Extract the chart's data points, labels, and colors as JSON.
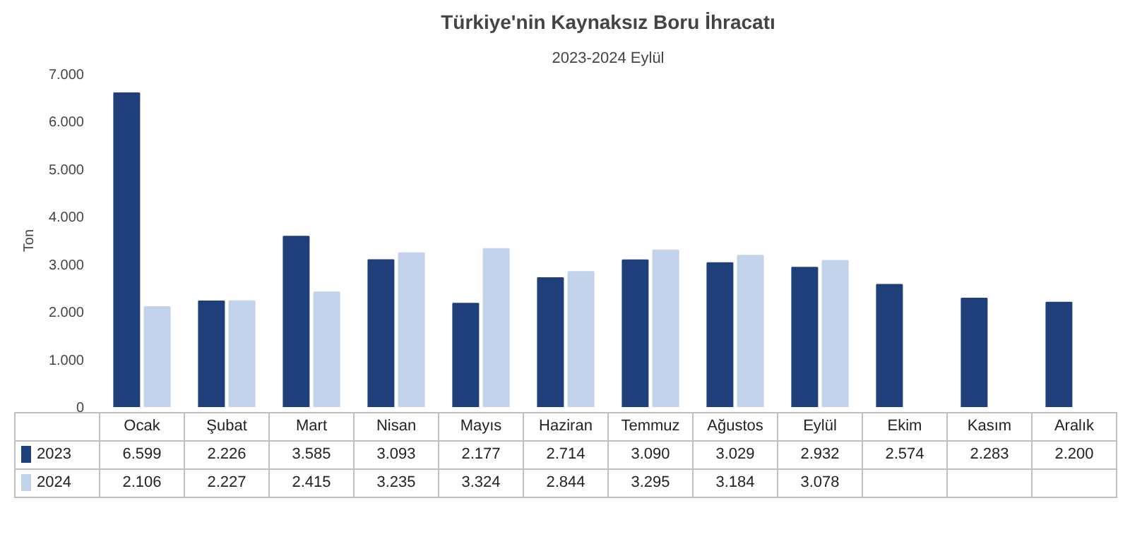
{
  "chart_data": {
    "type": "bar",
    "title": "Türkiye'nin Kaynaksız Boru İhracatı",
    "subtitle": "2023-2024 Eylül",
    "ylabel": "Ton",
    "categories": [
      "Ocak",
      "Şubat",
      "Mart",
      "Nisan",
      "Mayıs",
      "Haziran",
      "Temmuz",
      "Ağustos",
      "Eylül",
      "Ekim",
      "Kasım",
      "Aralık"
    ],
    "series": [
      {
        "name": "2023",
        "color": "#1f3f7a",
        "values": [
          6599,
          2226,
          3585,
          3093,
          2177,
          2714,
          3090,
          3029,
          2932,
          2574,
          2283,
          2200
        ],
        "value_labels": [
          "6.599",
          "2.226",
          "3.585",
          "3.093",
          "2.177",
          "2.714",
          "3.090",
          "3.029",
          "2.932",
          "2.574",
          "2.283",
          "2.200"
        ]
      },
      {
        "name": "2024",
        "color": "#c3d3ec",
        "values": [
          2106,
          2227,
          2415,
          3235,
          3324,
          2844,
          3295,
          3184,
          3078,
          null,
          null,
          null
        ],
        "value_labels": [
          "2.106",
          "2.227",
          "2.415",
          "3.235",
          "3.324",
          "2.844",
          "3.295",
          "3.184",
          "3.078",
          null,
          null,
          null
        ]
      }
    ],
    "ylim": [
      0,
      7000
    ],
    "yticks": [
      {
        "value": 0,
        "label": "0"
      },
      {
        "value": 1000,
        "label": "1.000"
      },
      {
        "value": 2000,
        "label": "2.000"
      },
      {
        "value": 3000,
        "label": "3.000"
      },
      {
        "value": 4000,
        "label": "4.000"
      },
      {
        "value": 5000,
        "label": "5.000"
      },
      {
        "value": 6000,
        "label": "6.000"
      },
      {
        "value": 7000,
        "label": "7.000"
      }
    ],
    "legend": "bottom"
  }
}
